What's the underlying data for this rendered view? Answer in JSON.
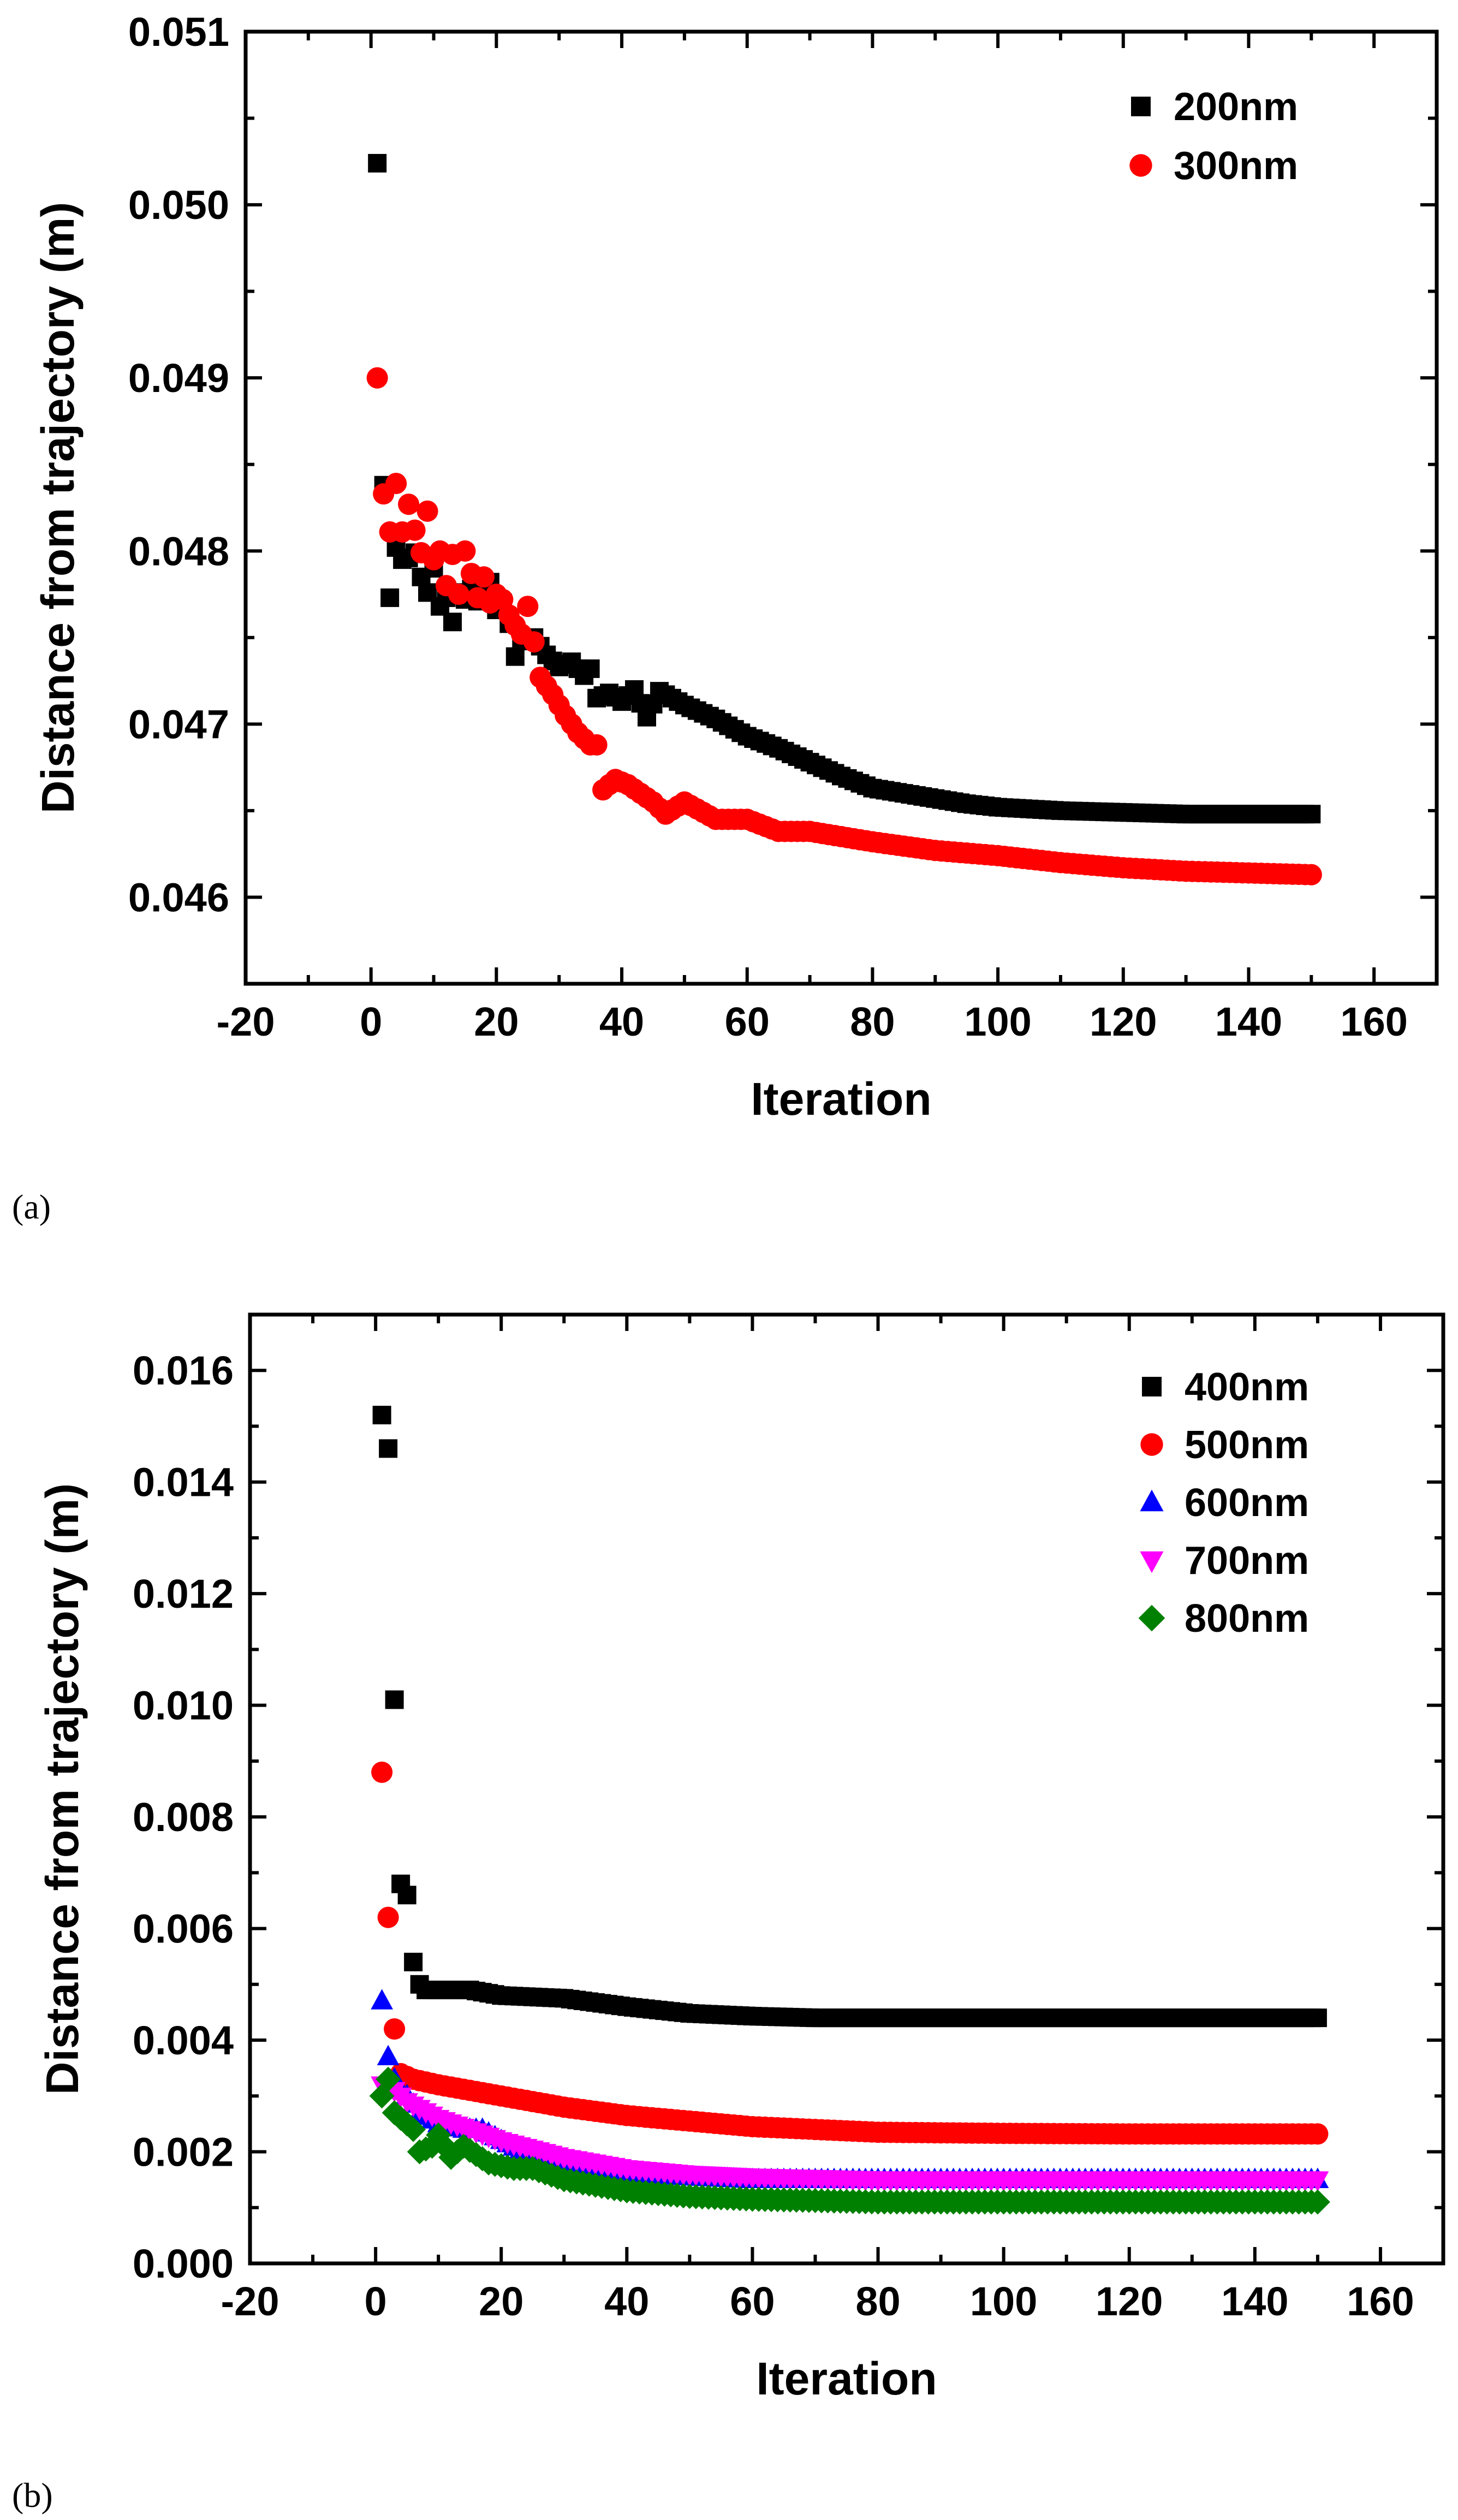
{
  "figure": {
    "panel_a_label": "(a)",
    "panel_b_label": "(b)"
  },
  "chart_data": [
    {
      "type": "scatter",
      "panel": "(a)",
      "title": "",
      "xlabel": "Iteration",
      "ylabel": "Distance from trajectory (m)",
      "xlim": [
        -20,
        170
      ],
      "ylim": [
        0.0455,
        0.051
      ],
      "xticks": [
        -20,
        0,
        20,
        40,
        60,
        80,
        100,
        120,
        140,
        160
      ],
      "xtick_labels": [
        "-20",
        "0",
        "20",
        "40",
        "60",
        "80",
        "100",
        "120",
        "140",
        "160"
      ],
      "yticks": [
        0.046,
        0.047,
        0.048,
        0.049,
        0.05,
        0.051
      ],
      "ytick_labels": [
        "0.046",
        "0.047",
        "0.048",
        "0.049",
        "0.050",
        "0.051"
      ],
      "legend_position": "top-right",
      "grid": false,
      "series": [
        {
          "name": "200nm",
          "marker": "square",
          "color": "#000000",
          "anchors": [
            [
              1,
              0.05024
            ],
            [
              2,
              0.04838
            ],
            [
              3,
              0.04773
            ],
            [
              4,
              0.04802
            ],
            [
              5,
              0.04795
            ],
            [
              6,
              0.04796
            ],
            [
              7,
              0.04799
            ],
            [
              8,
              0.04785
            ],
            [
              9,
              0.04776
            ],
            [
              10,
              0.0479
            ],
            [
              11,
              0.04768
            ],
            [
              12,
              0.04773
            ],
            [
              13,
              0.04759
            ],
            [
              14,
              0.04776
            ],
            [
              15,
              0.04772
            ],
            [
              16,
              0.04778
            ],
            [
              17,
              0.04771
            ],
            [
              18,
              0.04773
            ],
            [
              19,
              0.04782
            ],
            [
              20,
              0.04766
            ],
            [
              21,
              0.0477
            ],
            [
              22,
              0.04758
            ],
            [
              23,
              0.04739
            ],
            [
              24,
              0.04748
            ],
            [
              26,
              0.0475
            ],
            [
              28,
              0.0474
            ],
            [
              30,
              0.04733
            ],
            [
              32,
              0.04736
            ],
            [
              34,
              0.04728
            ],
            [
              35,
              0.04732
            ],
            [
              36,
              0.04715
            ],
            [
              38,
              0.04718
            ],
            [
              40,
              0.04713
            ],
            [
              42,
              0.0472
            ],
            [
              44,
              0.04704
            ],
            [
              46,
              0.04719
            ],
            [
              50,
              0.04711
            ],
            [
              55,
              0.04703
            ],
            [
              60,
              0.04693
            ],
            [
              65,
              0.04686
            ],
            [
              70,
              0.04678
            ],
            [
              75,
              0.0467
            ],
            [
              80,
              0.04663
            ],
            [
              85,
              0.0466
            ],
            [
              90,
              0.04657
            ],
            [
              95,
              0.04654
            ],
            [
              100,
              0.04652
            ],
            [
              110,
              0.0465
            ],
            [
              120,
              0.04649
            ],
            [
              130,
              0.04648
            ],
            [
              140,
              0.04648
            ],
            [
              150,
              0.04648
            ]
          ]
        },
        {
          "name": "300nm",
          "marker": "circle",
          "color": "#ff0000",
          "anchors": [
            [
              1,
              0.049
            ],
            [
              2,
              0.04833
            ],
            [
              3,
              0.04811
            ],
            [
              4,
              0.04839
            ],
            [
              5,
              0.04811
            ],
            [
              6,
              0.04827
            ],
            [
              7,
              0.04812
            ],
            [
              8,
              0.04799
            ],
            [
              9,
              0.04823
            ],
            [
              10,
              0.04795
            ],
            [
              11,
              0.048
            ],
            [
              12,
              0.0478
            ],
            [
              13,
              0.04798
            ],
            [
              14,
              0.04775
            ],
            [
              15,
              0.048
            ],
            [
              16,
              0.04787
            ],
            [
              17,
              0.04773
            ],
            [
              18,
              0.04785
            ],
            [
              19,
              0.0477
            ],
            [
              20,
              0.04775
            ],
            [
              21,
              0.04772
            ],
            [
              22,
              0.04763
            ],
            [
              23,
              0.04757
            ],
            [
              24,
              0.04752
            ],
            [
              25,
              0.04768
            ],
            [
              27,
              0.04727
            ],
            [
              29,
              0.04717
            ],
            [
              31,
              0.04705
            ],
            [
              33,
              0.04695
            ],
            [
              35,
              0.04688
            ],
            [
              36,
              0.04688
            ],
            [
              37,
              0.04662
            ],
            [
              39,
              0.04668
            ],
            [
              41,
              0.04665
            ],
            [
              43,
              0.0466
            ],
            [
              45,
              0.04655
            ],
            [
              47,
              0.04648
            ],
            [
              50,
              0.04655
            ],
            [
              55,
              0.04645
            ],
            [
              60,
              0.04645
            ],
            [
              65,
              0.04638
            ],
            [
              70,
              0.04638
            ],
            [
              75,
              0.04635
            ],
            [
              80,
              0.04632
            ],
            [
              90,
              0.04627
            ],
            [
              100,
              0.04624
            ],
            [
              110,
              0.0462
            ],
            [
              120,
              0.04617
            ],
            [
              130,
              0.04615
            ],
            [
              140,
              0.04614
            ],
            [
              150,
              0.04613
            ]
          ]
        }
      ]
    },
    {
      "type": "scatter",
      "panel": "(b)",
      "title": "",
      "xlabel": "Iteration",
      "ylabel": "Distance from trajectory (m)",
      "xlim": [
        -20,
        170
      ],
      "ylim": [
        0.0,
        0.017
      ],
      "xticks": [
        -20,
        0,
        20,
        40,
        60,
        80,
        100,
        120,
        140,
        160
      ],
      "xtick_labels": [
        "-20",
        "0",
        "20",
        "40",
        "60",
        "80",
        "100",
        "120",
        "140",
        "160"
      ],
      "yticks": [
        0.0,
        0.002,
        0.004,
        0.006,
        0.008,
        0.01,
        0.012,
        0.014,
        0.016
      ],
      "ytick_labels": [
        "0.000",
        "0.002",
        "0.004",
        "0.006",
        "0.008",
        "0.010",
        "0.012",
        "0.014",
        "0.016"
      ],
      "legend_position": "top-right",
      "grid": false,
      "series": [
        {
          "name": "400nm",
          "marker": "square",
          "color": "#000000",
          "anchors": [
            [
              1,
              0.0152
            ],
            [
              2,
              0.0146
            ],
            [
              3,
              0.0101
            ],
            [
              4,
              0.0068
            ],
            [
              5,
              0.0066
            ],
            [
              6,
              0.0054
            ],
            [
              7,
              0.005
            ],
            [
              8,
              0.0049
            ],
            [
              10,
              0.0049
            ],
            [
              15,
              0.0049
            ],
            [
              20,
              0.0048
            ],
            [
              30,
              0.00475
            ],
            [
              40,
              0.0046
            ],
            [
              50,
              0.00448
            ],
            [
              60,
              0.00443
            ],
            [
              70,
              0.0044
            ],
            [
              80,
              0.0044
            ],
            [
              100,
              0.0044
            ],
            [
              120,
              0.0044
            ],
            [
              150,
              0.0044
            ]
          ]
        },
        {
          "name": "500nm",
          "marker": "circle",
          "color": "#ff0000",
          "anchors": [
            [
              1,
              0.0088
            ],
            [
              2,
              0.0062
            ],
            [
              3,
              0.0042
            ],
            [
              4,
              0.0034
            ],
            [
              6,
              0.0033
            ],
            [
              10,
              0.0032
            ],
            [
              15,
              0.0031
            ],
            [
              20,
              0.003
            ],
            [
              30,
              0.0028
            ],
            [
              40,
              0.00265
            ],
            [
              50,
              0.00255
            ],
            [
              60,
              0.00245
            ],
            [
              70,
              0.0024
            ],
            [
              80,
              0.00235
            ],
            [
              100,
              0.00233
            ],
            [
              120,
              0.00232
            ],
            [
              150,
              0.00232
            ]
          ]
        },
        {
          "name": "600nm",
          "marker": "triangle-up",
          "color": "#0000ff",
          "anchors": [
            [
              1,
              0.0047
            ],
            [
              2,
              0.0037
            ],
            [
              3,
              0.0033
            ],
            [
              4,
              0.0031
            ],
            [
              5,
              0.003
            ],
            [
              7,
              0.0027
            ],
            [
              10,
              0.0025
            ],
            [
              14,
              0.0024
            ],
            [
              17,
              0.0024
            ],
            [
              20,
              0.0022
            ],
            [
              25,
              0.0019
            ],
            [
              30,
              0.0018
            ],
            [
              40,
              0.0016
            ],
            [
              50,
              0.00155
            ],
            [
              60,
              0.0015
            ],
            [
              80,
              0.0015
            ],
            [
              100,
              0.0015
            ],
            [
              150,
              0.0015
            ]
          ]
        },
        {
          "name": "700nm",
          "marker": "triangle-down",
          "color": "#ff00ff",
          "anchors": [
            [
              1,
              0.0032
            ],
            [
              3,
              0.0031
            ],
            [
              5,
              0.0029
            ],
            [
              10,
              0.0026
            ],
            [
              15,
              0.0024
            ],
            [
              20,
              0.0022
            ],
            [
              30,
              0.0019
            ],
            [
              40,
              0.0017
            ],
            [
              50,
              0.0016
            ],
            [
              60,
              0.00155
            ],
            [
              80,
              0.0015
            ],
            [
              100,
              0.0015
            ],
            [
              150,
              0.0015
            ]
          ]
        },
        {
          "name": "800nm",
          "marker": "diamond",
          "color": "#008000",
          "anchors": [
            [
              1,
              0.003
            ],
            [
              2,
              0.0033
            ],
            [
              3,
              0.0027
            ],
            [
              4,
              0.0026
            ],
            [
              6,
              0.0024
            ],
            [
              7,
              0.002
            ],
            [
              9,
              0.0021
            ],
            [
              10,
              0.0023
            ],
            [
              12,
              0.0019
            ],
            [
              14,
              0.0021
            ],
            [
              18,
              0.0018
            ],
            [
              22,
              0.0017
            ],
            [
              25,
              0.0017
            ],
            [
              30,
              0.0015
            ],
            [
              40,
              0.0013
            ],
            [
              50,
              0.0012
            ],
            [
              60,
              0.00115
            ],
            [
              80,
              0.0011
            ],
            [
              100,
              0.0011
            ],
            [
              120,
              0.0011
            ],
            [
              150,
              0.0011
            ]
          ]
        }
      ]
    }
  ]
}
